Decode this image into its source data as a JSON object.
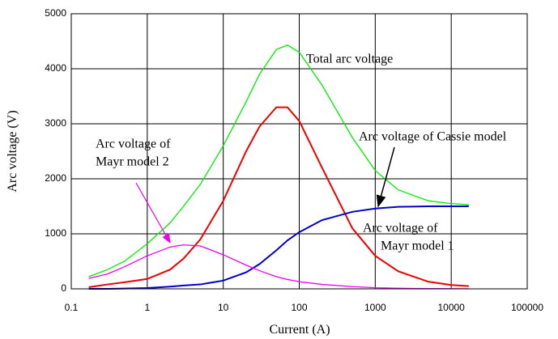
{
  "chart_data": {
    "type": "line",
    "x_label": "Current (A)",
    "y_label": "Arc voltage (V)",
    "x_log": true,
    "grid": true,
    "xlim": [
      0.1,
      100000
    ],
    "xticks": [
      0.1,
      1,
      10,
      100,
      1000,
      10000,
      100000
    ],
    "ylim": [
      0,
      5000
    ],
    "yticks": [
      0,
      1000,
      2000,
      3000,
      4000,
      5000
    ],
    "x": [
      0.17,
      0.3,
      0.5,
      1,
      2,
      3,
      5,
      10,
      20,
      30,
      50,
      70,
      100,
      200,
      500,
      1000,
      2000,
      5000,
      10000,
      17000
    ],
    "series": [
      {
        "color": "#00ee00",
        "values": [
          220,
          350,
          500,
          820,
          1200,
          1500,
          1900,
          2600,
          3400,
          3900,
          4350,
          4430,
          4300,
          3700,
          2750,
          2150,
          1800,
          1600,
          1550,
          1530
        ]
      },
      {
        "color": "#ee0000",
        "values": [
          30,
          80,
          120,
          180,
          350,
          550,
          900,
          1600,
          2500,
          2950,
          3300,
          3300,
          3050,
          2200,
          1100,
          600,
          320,
          130,
          70,
          50
        ]
      },
      {
        "color": "#0000cc",
        "values": [
          0,
          0,
          5,
          15,
          40,
          60,
          80,
          150,
          300,
          450,
          700,
          880,
          1030,
          1250,
          1400,
          1460,
          1490,
          1500,
          1500,
          1500
        ]
      },
      {
        "color": "#ee00ee",
        "values": [
          190,
          270,
          400,
          600,
          760,
          800,
          780,
          620,
          430,
          330,
          220,
          170,
          130,
          80,
          40,
          20,
          10,
          5,
          3,
          2
        ]
      }
    ],
    "annotations": [
      {
        "lines": [
          "Total arc voltage"
        ]
      },
      {
        "lines": [
          "Arc voltage of Cassie model"
        ]
      },
      {
        "lines": [
          "Arc voltage of",
          "Mayr model 1"
        ]
      },
      {
        "lines": [
          "Arc voltage of",
          "Mayr model 2"
        ]
      }
    ]
  }
}
